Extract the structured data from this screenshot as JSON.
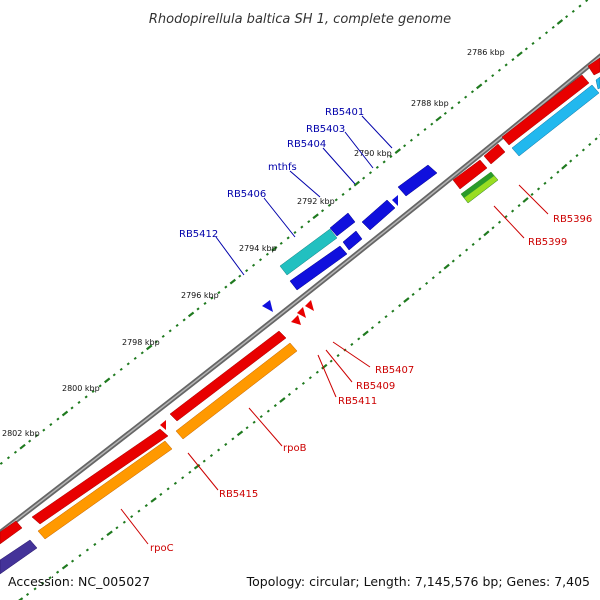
{
  "title": "Rhodopirellula baltica SH 1, complete genome",
  "footer": {
    "accession": "Accession: NC_005027",
    "summary": "Topology: circular; Length: 7,145,576 bp; Genes: 7,405"
  },
  "colors": {
    "backbone": "#808080",
    "tick": "#1f7a1f",
    "label_blue": "#0000aa",
    "label_red": "#cc0000",
    "red": "#ee0000",
    "blue": "#1010dd",
    "cyan": "#22bbee",
    "teal": "#20c0c0",
    "orange": "#ff9900",
    "green": "#33aa33",
    "lime": "#99dd22",
    "navy": "#443399"
  },
  "kbp_labels": [
    "2786 kbp",
    "2788 kbp",
    "2790 kbp",
    "2792 kbp",
    "2794 kbp",
    "2796 kbp",
    "2798 kbp",
    "2800 kbp",
    "2802 kbp"
  ],
  "gene_labels": {
    "RB5401": "RB5401",
    "RB5403": "RB5403",
    "RB5404": "RB5404",
    "mthfs": "mthfs",
    "RB5406": "RB5406",
    "RB5412": "RB5412",
    "RB5396": "RB5396",
    "RB5399": "RB5399",
    "RB5407": "RB5407",
    "RB5409": "RB5409",
    "RB5411": "RB5411",
    "rpoB": "rpoB",
    "RB5415": "RB5415",
    "rpoC": "rpoC"
  }
}
